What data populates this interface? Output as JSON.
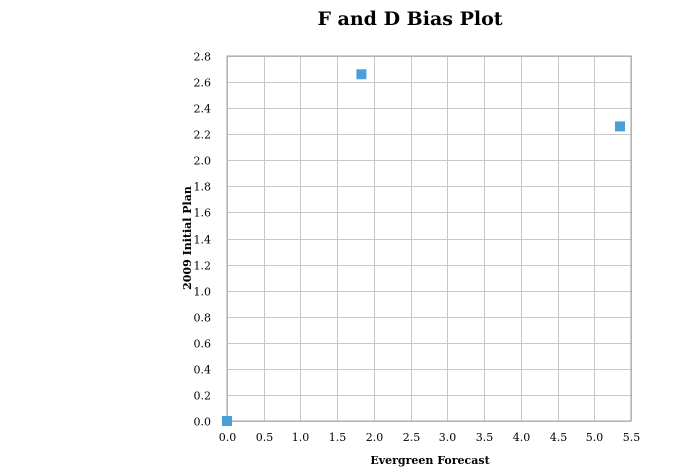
{
  "chart_data": {
    "type": "scatter",
    "title": "F and D Bias Plot",
    "xlabel": "Evergreen Forecast",
    "ylabel": "2009 Initial Plan",
    "xlim": [
      0.0,
      5.5
    ],
    "ylim": [
      0.0,
      2.8
    ],
    "x_ticks": [
      "0.0",
      "0.5",
      "1.0",
      "1.5",
      "2.0",
      "2.5",
      "3.0",
      "3.5",
      "4.0",
      "4.5",
      "5.0",
      "5.5"
    ],
    "y_ticks": [
      "0.0",
      "0.2",
      "0.4",
      "0.6",
      "0.8",
      "1.0",
      "1.2",
      "1.4",
      "1.6",
      "1.8",
      "2.0",
      "2.2",
      "2.4",
      "2.6",
      "2.8"
    ],
    "grid": true,
    "legend": "none",
    "marker_color": "#4a9fd8",
    "series": [
      {
        "points": [
          {
            "x": 0.0,
            "y": 0.0
          },
          {
            "x": 1.83,
            "y": 2.66
          },
          {
            "x": 5.35,
            "y": 2.26
          }
        ]
      }
    ]
  }
}
